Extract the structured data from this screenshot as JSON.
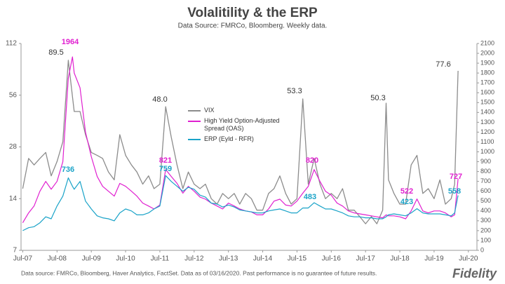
{
  "chart_data": {
    "type": "line",
    "title": "Volalitility & the ERP",
    "subtitle": "Data Source: FMRCo, Bloomberg.  Weekly data.",
    "footnote": "Data source: FMRCo, Bloomberg, Haver Analytics, FactSet.  Data as of 03/16/2020. Past performance is no guarantee of future results.",
    "logo": "Fidelity",
    "log_scale": true,
    "grid": false,
    "x": [
      2007.5,
      2007.67,
      2007.83,
      2008.0,
      2008.17,
      2008.33,
      2008.5,
      2008.67,
      2008.83,
      2008.95,
      2009.0,
      2009.17,
      2009.33,
      2009.5,
      2009.67,
      2009.83,
      2010.0,
      2010.17,
      2010.33,
      2010.5,
      2010.67,
      2010.83,
      2011.0,
      2011.17,
      2011.33,
      2011.5,
      2011.67,
      2011.83,
      2012.0,
      2012.17,
      2012.33,
      2012.5,
      2012.67,
      2012.83,
      2013.0,
      2013.17,
      2013.33,
      2013.5,
      2013.67,
      2013.83,
      2014.0,
      2014.17,
      2014.33,
      2014.5,
      2014.67,
      2014.83,
      2015.0,
      2015.17,
      2015.33,
      2015.5,
      2015.67,
      2015.83,
      2016.0,
      2016.17,
      2016.33,
      2016.5,
      2016.67,
      2016.83,
      2017.0,
      2017.17,
      2017.33,
      2017.5,
      2017.67,
      2017.83,
      2018.0,
      2018.1,
      2018.17,
      2018.33,
      2018.5,
      2018.67,
      2018.83,
      2019.0,
      2019.17,
      2019.33,
      2019.5,
      2019.67,
      2019.83,
      2020.0,
      2020.1,
      2020.2
    ],
    "series": [
      {
        "name": "VIX",
        "color": "#8c8c8c",
        "axis": "y",
        "values": [
          16,
          24,
          22,
          24,
          26,
          19,
          23,
          30,
          89.5,
          55,
          45,
          45,
          33,
          26,
          25,
          24,
          20,
          18,
          33,
          25,
          22,
          20,
          17,
          19,
          16,
          17,
          48.0,
          32,
          22,
          16,
          20,
          17,
          16,
          17,
          14,
          13,
          15,
          14,
          15,
          13,
          15,
          14,
          12,
          12,
          15,
          16,
          19,
          15,
          13,
          14,
          53.3,
          17,
          24,
          17,
          14,
          15,
          14,
          16,
          12,
          12,
          11,
          10,
          11,
          10,
          12,
          50.3,
          18,
          15,
          13,
          13,
          22,
          25,
          15,
          16,
          14,
          18,
          13,
          14,
          17,
          77.6
        ]
      },
      {
        "name": "High Yield Option-Adjusted Spread (OAS)",
        "color": "#e020d0",
        "axis": "y2",
        "values": [
          280,
          380,
          450,
          600,
          700,
          620,
          700,
          900,
          1750,
          1964,
          1800,
          1650,
          1200,
          950,
          750,
          650,
          600,
          550,
          680,
          650,
          600,
          550,
          480,
          450,
          420,
          460,
          821,
          750,
          680,
          580,
          650,
          600,
          540,
          520,
          480,
          450,
          420,
          480,
          450,
          420,
          400,
          390,
          360,
          360,
          420,
          500,
          520,
          460,
          450,
          500,
          580,
          650,
          820,
          700,
          600,
          560,
          480,
          450,
          400,
          380,
          370,
          360,
          350,
          340,
          330,
          360,
          350,
          350,
          340,
          320,
          400,
          522,
          400,
          380,
          400,
          400,
          380,
          340,
          360,
          727
        ]
      },
      {
        "name": "ERP (Eyld - RFR)",
        "color": "#1aa3c8",
        "axis": "y2",
        "values": [
          200,
          230,
          240,
          280,
          340,
          320,
          450,
          550,
          736,
          650,
          620,
          700,
          500,
          420,
          350,
          330,
          320,
          300,
          380,
          420,
          400,
          360,
          360,
          380,
          420,
          450,
          759,
          700,
          650,
          600,
          640,
          620,
          560,
          540,
          480,
          470,
          440,
          460,
          440,
          410,
          400,
          390,
          380,
          380,
          400,
          410,
          420,
          400,
          380,
          380,
          430,
          430,
          483,
          450,
          420,
          420,
          400,
          380,
          350,
          340,
          340,
          330,
          330,
          320,
          320,
          340,
          360,
          370,
          360,
          350,
          380,
          423,
          380,
          370,
          370,
          370,
          360,
          350,
          380,
          558
        ]
      }
    ],
    "annotations": [
      "89.5",
      "1964",
      "736",
      "48.0",
      "821",
      "759",
      "53.3",
      "820",
      "483",
      "50.3",
      "522",
      "423",
      "77.6",
      "727",
      "558"
    ],
    "xlim": [
      2007.45,
      2020.75
    ],
    "xticks": [
      {
        "value": 2007.5,
        "label": "Jul-07"
      },
      {
        "value": 2008.5,
        "label": "Jul-08"
      },
      {
        "value": 2009.5,
        "label": "Jul-09"
      },
      {
        "value": 2010.5,
        "label": "Jul-10"
      },
      {
        "value": 2011.5,
        "label": "Jul-11"
      },
      {
        "value": 2012.5,
        "label": "Jul-12"
      },
      {
        "value": 2013.5,
        "label": "Jul-13"
      },
      {
        "value": 2014.5,
        "label": "Jul-14"
      },
      {
        "value": 2015.5,
        "label": "Jul-15"
      },
      {
        "value": 2016.5,
        "label": "Jul-16"
      },
      {
        "value": 2017.5,
        "label": "Jul-17"
      },
      {
        "value": 2018.5,
        "label": "Jul-18"
      },
      {
        "value": 2019.5,
        "label": "Jul-19"
      },
      {
        "value": 2020.5,
        "label": "Jul-20"
      }
    ],
    "ylim": [
      7,
      112
    ],
    "yticks": [
      7,
      14,
      28,
      56,
      112
    ],
    "y2lim": [
      0,
      2100
    ],
    "y2ticks": [
      0,
      100,
      200,
      300,
      400,
      500,
      600,
      700,
      800,
      900,
      1000,
      1100,
      1200,
      1300,
      1400,
      1500,
      1600,
      1700,
      1800,
      1900,
      2000,
      2100
    ]
  }
}
